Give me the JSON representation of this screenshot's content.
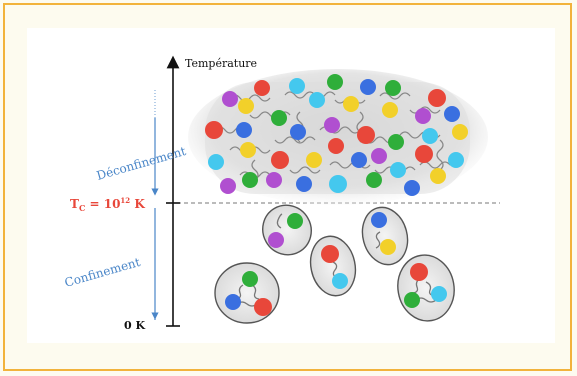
{
  "axis": {
    "label": "Température",
    "zero_label": "0 K",
    "tc_label_main": "T",
    "tc_label_sub": "C",
    "tc_label_rest": " = 10",
    "tc_label_exp": "12",
    "tc_label_unit": " K"
  },
  "regions": {
    "upper": "Déconfinement",
    "lower": "Confinement"
  },
  "colors": {
    "red": "#e8473a",
    "green": "#2fae3a",
    "blue": "#3a6fe0",
    "cyan": "#44c8ee",
    "yellow": "#f2d02a",
    "purple": "#b04fd0",
    "accent_blue": "#4a86c8",
    "frame": "#f2b33c"
  }
}
